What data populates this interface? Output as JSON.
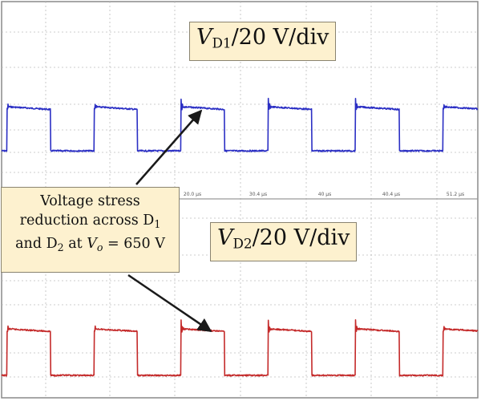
{
  "chart_data": {
    "type": "line",
    "panels": [
      {
        "name": "",
        "label": {
          "symbol": "V",
          "subscript": "D1",
          "scale": "/20 V/div"
        },
        "color": "#2b2fc4",
        "waveform": {
          "period_us": 10.2,
          "duty_high": 0.5,
          "high_level_div": 0.0,
          "low_level_div": 1.9,
          "overshoot_div": 0.35,
          "first_rise_us": -4.6,
          "window_us": [
            -5.2,
            50.5
          ],
          "noise_div": 0.03
        }
      },
      {
        "name": "",
        "label": {
          "symbol": "V",
          "subscript": "D2",
          "scale": "/20 V/div"
        },
        "color": "#c42a2a",
        "waveform": {
          "period_us": 10.2,
          "duty_high": 0.5,
          "high_level_div": 0.0,
          "low_level_div": 2.15,
          "overshoot_div": 0.4,
          "first_rise_us": -4.6,
          "window_us": [
            -5.2,
            50.5
          ],
          "noise_div": 0.03
        }
      }
    ],
    "annotation": {
      "line1": "Voltage stress",
      "line2_text": "reduction across D",
      "line2_sub": "1",
      "line3_a": "and D",
      "line3_sub": "2",
      "line3_b": " at ",
      "line3_var": "V",
      "line3_var_sub": "o",
      "line3_c": " = 650 V"
    },
    "time_ticks": [
      "20.0 µs",
      "30.4 µs",
      "40 µs",
      "40.4 µs",
      "51.2 µs"
    ]
  },
  "colors": {
    "grid": "#bcbcbc",
    "label_bg": "#fdf1cf",
    "arrow": "#1a1a1a"
  }
}
